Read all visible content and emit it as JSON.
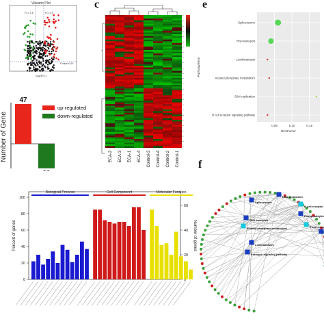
{
  "panel_labels": {
    "c": "c",
    "e": "e",
    "f": "f"
  },
  "volcano": {
    "title": "Volcano Plot",
    "xlabel": "log2(FC)",
    "fc_left": "FC=-1.5",
    "fc_right": "FC=1.5",
    "pvalue": "P-value=0.05",
    "colors": {
      "up": "#e02020",
      "down": "#2ea02e",
      "ns": "#111111"
    }
  },
  "bar_counts": {
    "ylabel": "Number of Gene",
    "legend": [
      {
        "label": "up-regulated",
        "color": "#e8261c"
      },
      {
        "label": "down-regulated",
        "color": "#1f7a1f"
      }
    ],
    "up_value": "47",
    "down_value": "29",
    "chart_data": {
      "type": "bar",
      "categories": [
        "up-regulated",
        "down-regulated"
      ],
      "values": [
        47,
        -29
      ],
      "ylim": [
        -29,
        47
      ]
    }
  },
  "heatmap": {
    "samples": [
      "ECA-2",
      "ECA-3",
      "ECA-1",
      "ECA-4",
      "Control-3",
      "Control-4",
      "Control-2",
      "Control-1"
    ],
    "colors": {
      "high": "#e8261c",
      "mid": "#111111",
      "low": "#22c022"
    }
  },
  "go": {
    "categories": [
      {
        "label": "Biological Process",
        "color": "#1a1ad0"
      },
      {
        "label": "Cell Component",
        "color": "#d01a1a"
      },
      {
        "label": "Molecular Function",
        "color": "#e8e000"
      }
    ],
    "ylabel_left": "Percent of genes",
    "ylabel_right": "Number of genes",
    "left_ticks": [
      "0",
      "20",
      "40",
      "60",
      "80",
      "100"
    ],
    "right_ticks": [
      "0",
      "20",
      "40",
      "60"
    ],
    "chart_data": {
      "type": "bar",
      "series": [
        {
          "name": "Biological Process",
          "values": [
            22,
            30,
            18,
            25,
            34,
            20,
            42,
            36,
            21,
            30,
            46,
            37
          ]
        },
        {
          "name": "Cell Component",
          "values": [
            85,
            85,
            72,
            70,
            68,
            70,
            70,
            65,
            88,
            88,
            60
          ]
        },
        {
          "name": "Molecular Function",
          "values": [
            85,
            65,
            42,
            44,
            30,
            58,
            28,
            22,
            12
          ]
        }
      ],
      "ylim": [
        0,
        100
      ]
    }
  },
  "kegg": {
    "ylabel": "Pathway/term",
    "xlabel": "RichFactor",
    "x_ticks": [
      "0.05",
      "0.10",
      "0.15"
    ],
    "chart_data": {
      "type": "scatter",
      "categories": [
        "Spliceosome",
        "RNA transport",
        "Leishmaniasis",
        "Inositol phosphate metabolism",
        "DNA replication",
        "B cell receptor signaling pathway"
      ],
      "x": [
        0.06,
        0.04,
        0.03,
        0.035,
        0.17,
        0.03
      ],
      "xlim": [
        0,
        0.18
      ]
    }
  },
  "network": {
    "nodes": [
      "DNA replication",
      "B cell receptor signaling pathway",
      "Spliceosome",
      "Phosphatidylinositol signalin",
      "T cell receptor signalin",
      "MAPK sig",
      "RNA transport",
      "Inositol phosphate metabolism",
      "Leishmaniasis",
      "Estrogen signaling pathway"
    ],
    "colors": {
      "hub": "#1a3cc0",
      "hub_alt": "#18c8e0",
      "gene": "#3aa03a",
      "gene_red": "#d02020"
    }
  }
}
